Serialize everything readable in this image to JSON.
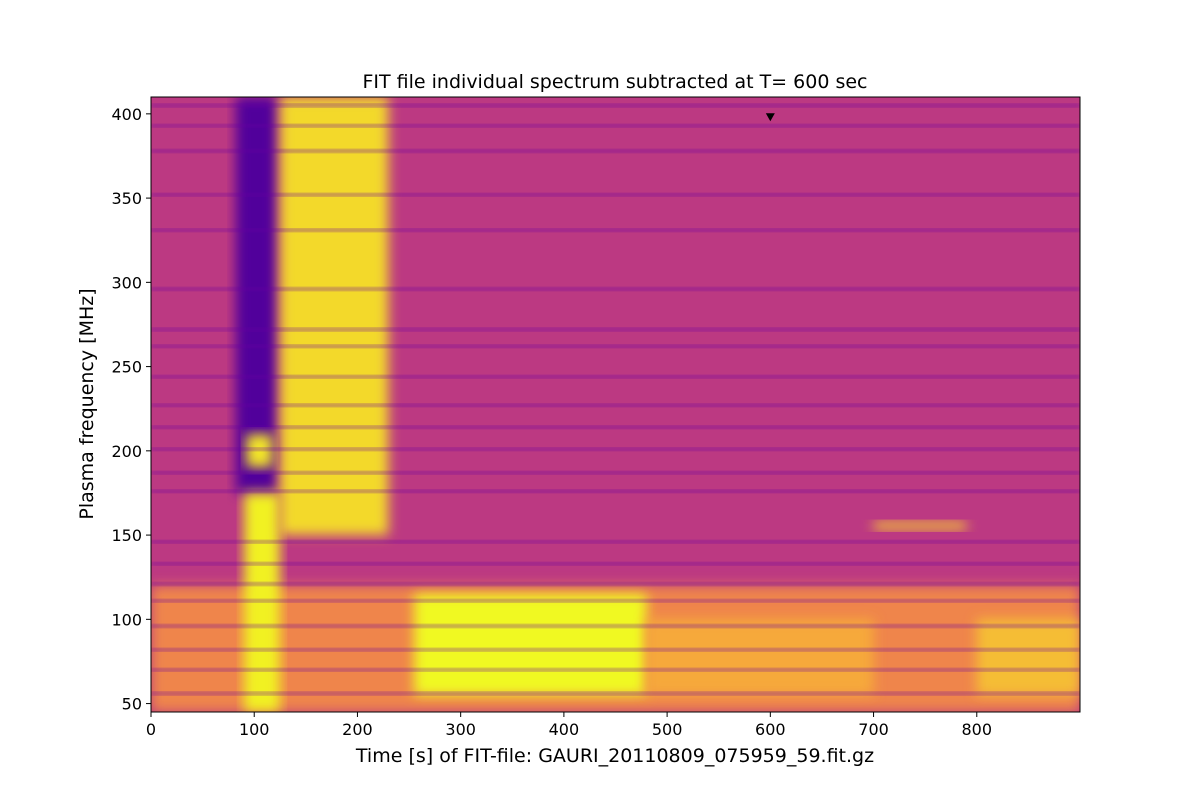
{
  "chart_data": {
    "type": "heatmap",
    "title": "FIT file individual spectrum subtracted at T=  600 sec",
    "xlabel": "Time [s] of FIT-file: GAURI_20110809_075959_59.fit.gz",
    "ylabel": "Plasma frequency [MHz]",
    "xlim": [
      0,
      900
    ],
    "ylim": [
      45,
      410
    ],
    "xticks": [
      0,
      100,
      200,
      300,
      400,
      500,
      600,
      700,
      800
    ],
    "yticks": [
      50,
      100,
      150,
      200,
      250,
      300,
      350,
      400
    ],
    "grid": false,
    "legend": "none",
    "colormap": [
      "#0d0887",
      "#7e03a8",
      "#cc4778",
      "#f89540",
      "#f0f921"
    ],
    "marker": {
      "label": "T=600 sec",
      "x": 600,
      "y": 398,
      "color": "#000000"
    },
    "emission_regions": [
      {
        "name": "background",
        "t": [
          0,
          900
        ],
        "f": [
          45,
          410
        ],
        "intensity": 0.45
      },
      {
        "name": "low-frequency continuum",
        "t": [
          0,
          900
        ],
        "f": [
          45,
          120
        ],
        "intensity": 0.7
      },
      {
        "name": "dark vertical lane",
        "t": [
          82,
          122
        ],
        "f": [
          175,
          410
        ],
        "intensity": 0.15
      },
      {
        "name": "bright burst column",
        "t": [
          90,
          125
        ],
        "f": [
          45,
          175
        ],
        "intensity": 0.98
      },
      {
        "name": "burst blob near 200 MHz",
        "t": [
          92,
          118
        ],
        "f": [
          190,
          210
        ],
        "intensity": 0.95
      },
      {
        "name": "drifting type III lanes",
        "t": [
          125,
          230
        ],
        "f": [
          150,
          410
        ],
        "intensity": 0.92
      },
      {
        "name": "low-frequency continuum core",
        "t": [
          255,
          480
        ],
        "f": [
          55,
          115
        ],
        "intensity": 1.0
      },
      {
        "name": "extended continuum",
        "t": [
          480,
          700
        ],
        "f": [
          55,
          100
        ],
        "intensity": 0.8
      },
      {
        "name": "late continuum",
        "t": [
          800,
          900
        ],
        "f": [
          55,
          100
        ],
        "intensity": 0.85
      },
      {
        "name": "narrowband interference",
        "t": [
          700,
          790
        ],
        "f": [
          153,
          158
        ],
        "intensity": 0.88
      }
    ],
    "interference_bands_mhz": [
      405,
      393,
      378,
      352,
      331,
      296,
      272,
      262,
      244,
      227,
      214,
      201,
      187,
      176,
      146,
      133,
      121,
      111,
      96,
      82,
      70,
      56
    ]
  }
}
